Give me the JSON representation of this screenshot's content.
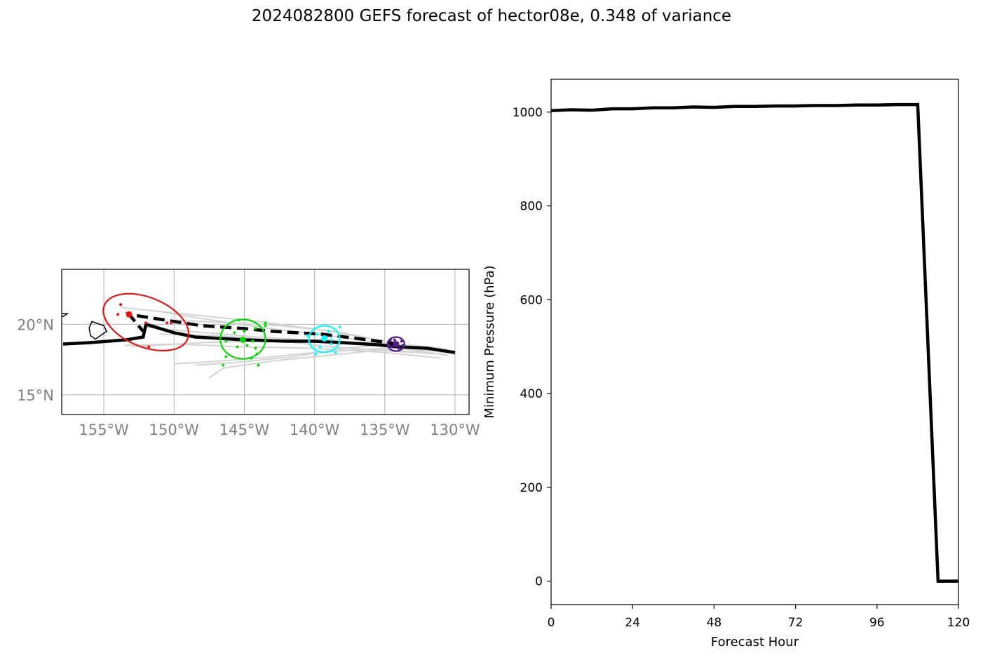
{
  "figure": {
    "title": "2024082800 GEFS forecast of hector08e, 0.348 of variance"
  },
  "chart_data": [
    {
      "type": "scatter",
      "kind": "track-map",
      "xlim": [
        -158,
        -129
      ],
      "ylim": [
        13.6,
        23.9
      ],
      "grid": true,
      "lon_ticks": [
        -155,
        -150,
        -145,
        -140,
        -135,
        -130
      ],
      "lon_labels": [
        "155°W",
        "150°W",
        "145°W",
        "140°W",
        "135°W",
        "130°W"
      ],
      "lat_ticks": [
        15,
        20
      ],
      "lat_labels": [
        "15°N",
        "20°N"
      ],
      "colors": {
        "ensemble": "#d3d3d3",
        "track": "#000000",
        "coast": "#000000",
        "group1": "#ee1111",
        "group2": "#00dd00",
        "group3": "#00ffff",
        "group4": "#551a8b"
      },
      "coastline_lonlat": [
        [
          [
            -156.05,
            19.75
          ],
          [
            -155.85,
            20.2
          ],
          [
            -155.0,
            19.9
          ],
          [
            -154.8,
            19.5
          ],
          [
            -155.6,
            18.95
          ],
          [
            -155.95,
            19.2
          ],
          [
            -156.05,
            19.75
          ]
        ],
        [
          [
            -158.0,
            20.75
          ],
          [
            -157.6,
            20.75
          ],
          [
            -157.9,
            20.55
          ],
          [
            -158.0,
            20.55
          ]
        ]
      ],
      "ensemble_tracks": [
        [
          [
            -130.5,
            17.8
          ],
          [
            -134,
            18.3
          ],
          [
            -139,
            18.8
          ],
          [
            -144,
            19.1
          ],
          [
            -149,
            19.5
          ],
          [
            -152,
            19.8
          ]
        ],
        [
          [
            -130.5,
            18.2
          ],
          [
            -134,
            18.5
          ],
          [
            -139,
            19.2
          ],
          [
            -144,
            19.8
          ],
          [
            -148,
            20.4
          ],
          [
            -151,
            20.9
          ]
        ],
        [
          [
            -131,
            17.6
          ],
          [
            -135,
            18.0
          ],
          [
            -140,
            18.3
          ],
          [
            -145,
            18.4
          ],
          [
            -150,
            18.6
          ],
          [
            -153.5,
            18.5
          ]
        ],
        [
          [
            -130.8,
            18.0
          ],
          [
            -134.5,
            18.7
          ],
          [
            -139.5,
            19.6
          ],
          [
            -144,
            20.2
          ],
          [
            -148,
            20.6
          ],
          [
            -153.8,
            21.2
          ]
        ],
        [
          [
            -131,
            18.1
          ],
          [
            -135,
            18.3
          ],
          [
            -140,
            18.0
          ],
          [
            -144,
            17.6
          ],
          [
            -148,
            17.3
          ],
          [
            -150,
            17.2
          ]
        ],
        [
          [
            -131.5,
            17.9
          ],
          [
            -135,
            18.2
          ],
          [
            -139,
            17.8
          ],
          [
            -143,
            17.4
          ],
          [
            -146.5,
            16.9
          ],
          [
            -147.5,
            16.2
          ]
        ],
        [
          [
            -131,
            18.3
          ],
          [
            -134,
            18.6
          ],
          [
            -138,
            18.3
          ],
          [
            -141.5,
            17.7
          ],
          [
            -145.5,
            17.3
          ],
          [
            -148.5,
            17.1
          ]
        ],
        [
          [
            -131,
            17.9
          ],
          [
            -134.5,
            18.1
          ],
          [
            -139,
            18.4
          ],
          [
            -143,
            18.9
          ],
          [
            -147,
            19.2
          ],
          [
            -151,
            19.3
          ]
        ],
        [
          [
            -130.5,
            18.0
          ],
          [
            -134,
            18.6
          ],
          [
            -138.5,
            19.5
          ],
          [
            -142.5,
            19.9
          ],
          [
            -146,
            20.1
          ],
          [
            -150,
            20.3
          ]
        ],
        [
          [
            -131,
            18.2
          ],
          [
            -135,
            18.5
          ],
          [
            -139.5,
            18.9
          ],
          [
            -144,
            18.8
          ],
          [
            -148,
            18.7
          ],
          [
            -153,
            18.4
          ]
        ]
      ],
      "mean_track": [
        [
          -130,
          18.0
        ],
        [
          -132,
          18.3
        ],
        [
          -134,
          18.4
        ],
        [
          -135.5,
          18.55
        ],
        [
          -138,
          18.7
        ],
        [
          -140,
          18.8
        ],
        [
          -142,
          18.8
        ],
        [
          -145,
          18.9
        ],
        [
          -148.5,
          19.1
        ],
        [
          -150,
          19.4
        ],
        [
          -152,
          20.0
        ],
        [
          -152.2,
          19.1
        ],
        [
          -153.4,
          18.9
        ],
        [
          -156,
          18.7
        ],
        [
          -157.9,
          18.6
        ]
      ],
      "control_track": [
        [
          -134,
          18.6
        ],
        [
          -137,
          19.0
        ],
        [
          -139.5,
          19.3
        ],
        [
          -143,
          19.5
        ],
        [
          -145,
          19.7
        ],
        [
          -148,
          19.9
        ],
        [
          -150,
          20.2
        ],
        [
          -153.2,
          20.7
        ],
        [
          -152.2,
          19.5
        ]
      ],
      "uncertainty_ellipses": [
        {
          "group": "group1",
          "center": [
            -152,
            20.15
          ],
          "rx": 3.2,
          "ry": 1.75,
          "angle_deg": 22
        },
        {
          "group": "group2",
          "center": [
            -145.1,
            18.95
          ],
          "rx": 1.6,
          "ry": 1.4,
          "angle_deg": 0
        },
        {
          "group": "group3",
          "center": [
            -139.3,
            18.95
          ],
          "rx": 1.1,
          "ry": 0.95,
          "angle_deg": 0
        },
        {
          "group": "group4",
          "center": [
            -134.2,
            18.6
          ],
          "rx": 0.6,
          "ry": 0.5,
          "angle_deg": 0
        }
      ],
      "member_positions": {
        "group1": [
          [
            -153.2,
            20.7
          ],
          [
            -152,
            20.1
          ],
          [
            -153.8,
            21.4
          ],
          [
            -154,
            20.7
          ],
          [
            -150.5,
            20.1
          ],
          [
            -151.8,
            18.4
          ],
          [
            -150.2,
            20.1
          ]
        ],
        "group2": [
          [
            -145.1,
            18.9
          ],
          [
            -145,
            19.5
          ],
          [
            -145.4,
            20.3
          ],
          [
            -146.3,
            18.8
          ],
          [
            -145.5,
            18.4
          ],
          [
            -144.2,
            19.7
          ],
          [
            -143.5,
            19.9
          ],
          [
            -143.5,
            20.1
          ],
          [
            -144.4,
            18.8
          ],
          [
            -144.8,
            18.5
          ],
          [
            -144.1,
            17.9
          ],
          [
            -146.3,
            17.7
          ],
          [
            -146.5,
            17.1
          ],
          [
            -144.5,
            17.6
          ],
          [
            -144.2,
            18.3
          ],
          [
            -145.7,
            19.4
          ],
          [
            -144,
            17.1
          ]
        ],
        "group3": [
          [
            -139.3,
            19.0
          ],
          [
            -139.6,
            18.4
          ],
          [
            -138.8,
            18.9
          ],
          [
            -139.8,
            19.3
          ],
          [
            -138.2,
            19.8
          ],
          [
            -138.5,
            18.0
          ],
          [
            -139.9,
            17.9
          ],
          [
            -138.8,
            18.6
          ],
          [
            -140.5,
            19.2
          ],
          [
            -139,
            19.5
          ]
        ],
        "group4": [
          [
            -134.2,
            18.6
          ],
          [
            -134.5,
            18.4
          ],
          [
            -133.8,
            18.8
          ],
          [
            -134.0,
            18.3
          ],
          [
            -134.6,
            18.9
          ],
          [
            -133.7,
            18.5
          ],
          [
            -134.3,
            18.9
          ],
          [
            -134.7,
            18.5
          ]
        ]
      }
    },
    {
      "type": "line",
      "xlabel": "Forecast Hour",
      "ylabel": "Minimum Pressure (hPa)",
      "xlim": [
        0,
        120
      ],
      "ylim": [
        -50,
        1070
      ],
      "xticks": [
        0,
        24,
        48,
        72,
        96,
        120
      ],
      "yticks": [
        0,
        200,
        400,
        600,
        800,
        1000
      ],
      "grid": false,
      "colors": {
        "ensemble": "#d3d3d3",
        "mean": "#000000"
      },
      "ensemble_series": [
        {
          "x": [
            0,
            6,
            12,
            18,
            24,
            30,
            36,
            42,
            48,
            54,
            60,
            66,
            72,
            78,
            84,
            90,
            96,
            102,
            108
          ],
          "y": [
            1002,
            1004,
            1002,
            1005,
            1006,
            1008,
            1008,
            1010,
            1009,
            1011,
            1011,
            1012,
            1012,
            1013,
            1013,
            1014,
            1014,
            1015,
            1015
          ]
        },
        {
          "x": [
            0,
            6,
            12,
            18,
            24,
            30,
            36,
            42,
            48,
            54,
            60,
            66,
            72,
            78,
            84,
            90,
            96,
            102,
            108
          ],
          "y": [
            1004,
            1006,
            1006,
            1008,
            1009,
            1010,
            1011,
            1012,
            1012,
            1014,
            1014,
            1015,
            1016,
            1016,
            1016,
            1017,
            1017,
            1017,
            1017
          ]
        }
      ],
      "mean_series": {
        "x": [
          0,
          6,
          12,
          18,
          24,
          30,
          36,
          42,
          48,
          54,
          60,
          66,
          72,
          78,
          84,
          90,
          96,
          102,
          108,
          114,
          120
        ],
        "y": [
          1003,
          1005,
          1004,
          1007,
          1007,
          1009,
          1009,
          1011,
          1010,
          1012,
          1012,
          1013,
          1013,
          1014,
          1014,
          1015,
          1015,
          1016,
          1016,
          0,
          0
        ]
      }
    }
  ]
}
